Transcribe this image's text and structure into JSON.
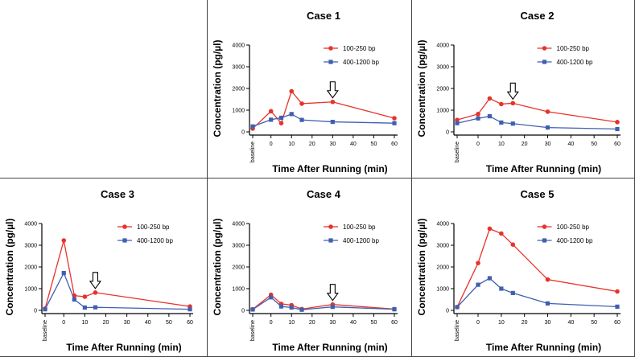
{
  "chart_data": [
    {
      "type": "line",
      "title": "Case 1",
      "xlabel": "Time After Running (min)",
      "ylabel": "Concentration (pg/µl)",
      "ylim": [
        0,
        4000
      ],
      "yticks": [
        0,
        1000,
        2000,
        3000,
        4000
      ],
      "xticks": [
        "baseline",
        "0",
        "10",
        "20",
        "30",
        "40",
        "50",
        "60"
      ],
      "x": [
        "baseline",
        0,
        5,
        10,
        15,
        30,
        60
      ],
      "series": [
        {
          "name": "100-250 bp",
          "color": "#e8322b",
          "marker": "circle",
          "values": [
            150,
            950,
            400,
            1870,
            1300,
            1380,
            630
          ]
        },
        {
          "name": "400-1200 bp",
          "color": "#3f5fb0",
          "marker": "square",
          "values": [
            250,
            560,
            650,
            820,
            550,
            460,
            400
          ]
        }
      ],
      "arrow_at": 30,
      "legend": "top-right"
    },
    {
      "type": "line",
      "title": "Case 2",
      "xlabel": "Time After Running (min)",
      "ylabel": "Concentration (pg/µl)",
      "ylim": [
        0,
        4000
      ],
      "yticks": [
        0,
        1000,
        2000,
        3000,
        4000
      ],
      "xticks": [
        "baseline",
        "0",
        "10",
        "20",
        "30",
        "40",
        "50",
        "60"
      ],
      "x": [
        "baseline",
        0,
        5,
        10,
        15,
        30,
        60
      ],
      "series": [
        {
          "name": "100-250 bp",
          "color": "#e8322b",
          "marker": "circle",
          "values": [
            550,
            820,
            1540,
            1280,
            1320,
            930,
            450
          ]
        },
        {
          "name": "400-1200 bp",
          "color": "#3f5fb0",
          "marker": "square",
          "values": [
            400,
            620,
            720,
            430,
            380,
            200,
            130
          ]
        }
      ],
      "arrow_at": 15,
      "legend": "top-right"
    },
    {
      "type": "line",
      "title": "Case 3",
      "xlabel": "Time After Running (min)",
      "ylabel": "Concentration (pg/µl)",
      "ylim": [
        0,
        4000
      ],
      "yticks": [
        0,
        1000,
        2000,
        3000,
        4000
      ],
      "xticks": [
        "baseline",
        "0",
        "10",
        "20",
        "30",
        "40",
        "50",
        "60"
      ],
      "x": [
        "baseline",
        0,
        5,
        10,
        15,
        60
      ],
      "series": [
        {
          "name": "100-250 bp",
          "color": "#e8322b",
          "marker": "circle",
          "values": [
            80,
            3220,
            680,
            630,
            820,
            180
          ]
        },
        {
          "name": "400-1200 bp",
          "color": "#3f5fb0",
          "marker": "square",
          "values": [
            50,
            1720,
            500,
            130,
            140,
            50
          ]
        }
      ],
      "arrow_at": 15,
      "legend": "top-right"
    },
    {
      "type": "line",
      "title": "Case 4",
      "xlabel": "Time After Running (min)",
      "ylabel": "Concentration (pg/µl)",
      "ylim": [
        0,
        4000
      ],
      "yticks": [
        0,
        1000,
        2000,
        3000,
        4000
      ],
      "xticks": [
        "baseline",
        "0",
        "10",
        "20",
        "30",
        "40",
        "50",
        "60"
      ],
      "x": [
        "baseline",
        0,
        5,
        10,
        15,
        30,
        60
      ],
      "series": [
        {
          "name": "100-250 bp",
          "color": "#e8322b",
          "marker": "circle",
          "values": [
            50,
            720,
            300,
            240,
            60,
            270,
            60
          ]
        },
        {
          "name": "400-1200 bp",
          "color": "#3f5fb0",
          "marker": "square",
          "values": [
            40,
            600,
            180,
            130,
            30,
            160,
            50
          ]
        }
      ],
      "arrow_at": 30,
      "legend": "top-right"
    },
    {
      "type": "line",
      "title": "Case 5",
      "xlabel": "Time After Running (min)",
      "ylabel": "Concentration (pg/µl)",
      "ylim": [
        0,
        4000
      ],
      "yticks": [
        0,
        1000,
        2000,
        3000,
        4000
      ],
      "xticks": [
        "baseline",
        "0",
        "10",
        "20",
        "30",
        "40",
        "50",
        "60"
      ],
      "x": [
        "baseline",
        0,
        5,
        10,
        15,
        30,
        60
      ],
      "series": [
        {
          "name": "100-250 bp",
          "color": "#e8322b",
          "marker": "circle",
          "values": [
            150,
            2180,
            3760,
            3540,
            3030,
            1420,
            870
          ]
        },
        {
          "name": "400-1200 bp",
          "color": "#3f5fb0",
          "marker": "square",
          "values": [
            150,
            1180,
            1480,
            1000,
            800,
            320,
            170
          ]
        }
      ],
      "legend": "top-right"
    }
  ]
}
